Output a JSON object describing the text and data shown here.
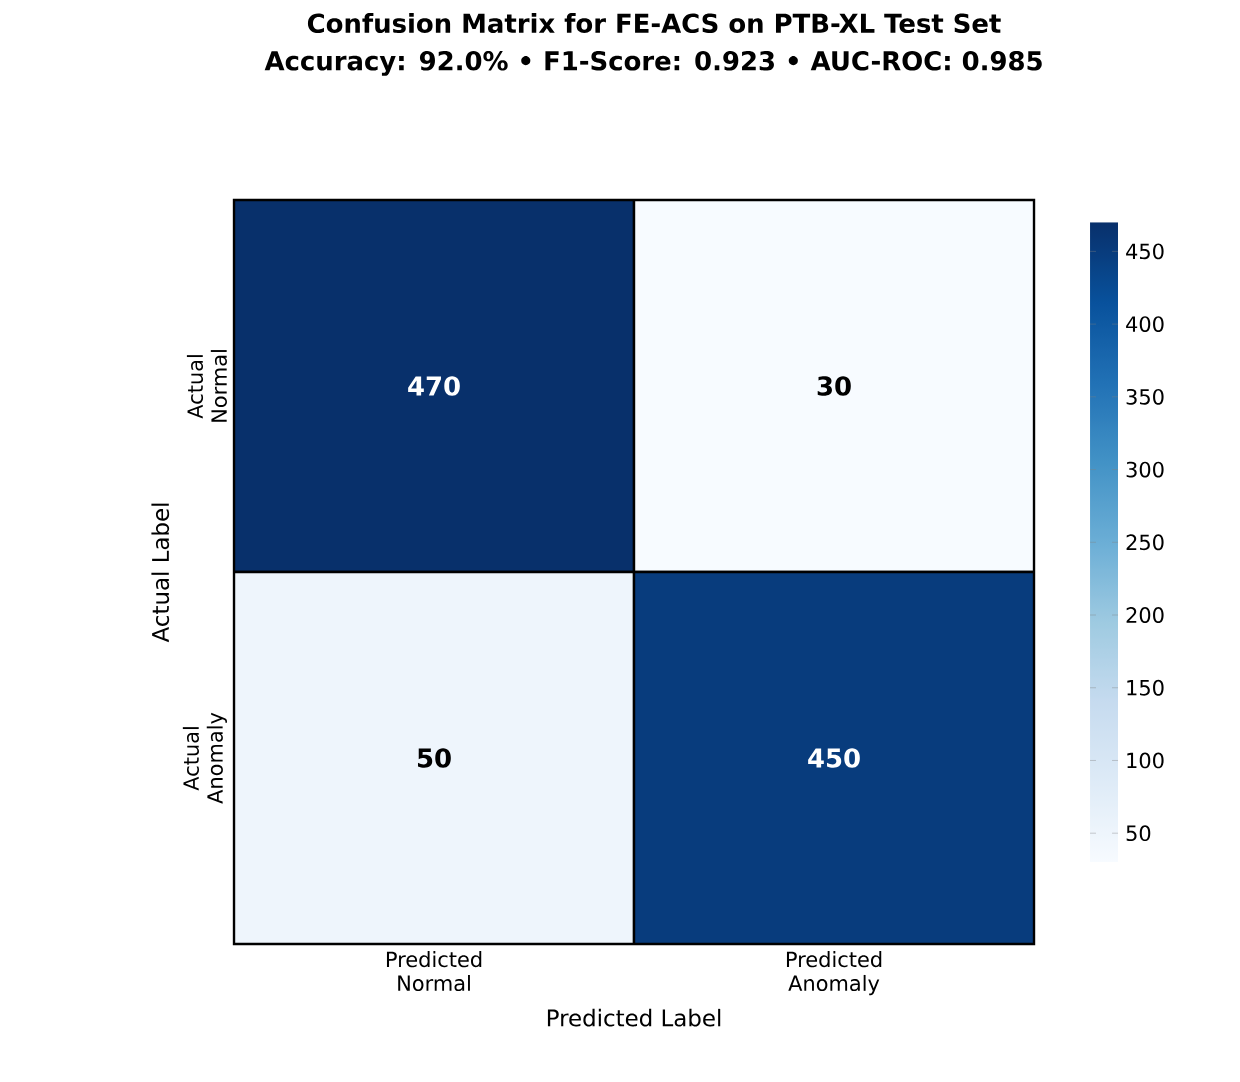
{
  "chart_data": {
    "type": "heatmap",
    "title": "Confusion Matrix for FE-ACS on PTB-XL Test Set",
    "subtitle": "Accuracy: 92.0%  •  F1-Score: 0.923  •  AUC-ROC: 0.985",
    "xlabel": "Predicted Label",
    "ylabel": "Actual Label",
    "categories": [
      "Predicted Normal",
      "Predicted Anomaly"
    ],
    "y_categories": [
      "Actual Normal",
      "Actual Anomaly"
    ],
    "cells": [
      [
        470,
        30
      ],
      [
        50,
        450
      ]
    ],
    "data_labels": true,
    "clim": [
      30,
      470
    ],
    "cticks": [
      50,
      100,
      150,
      200,
      250,
      300,
      350,
      400,
      450
    ]
  }
}
